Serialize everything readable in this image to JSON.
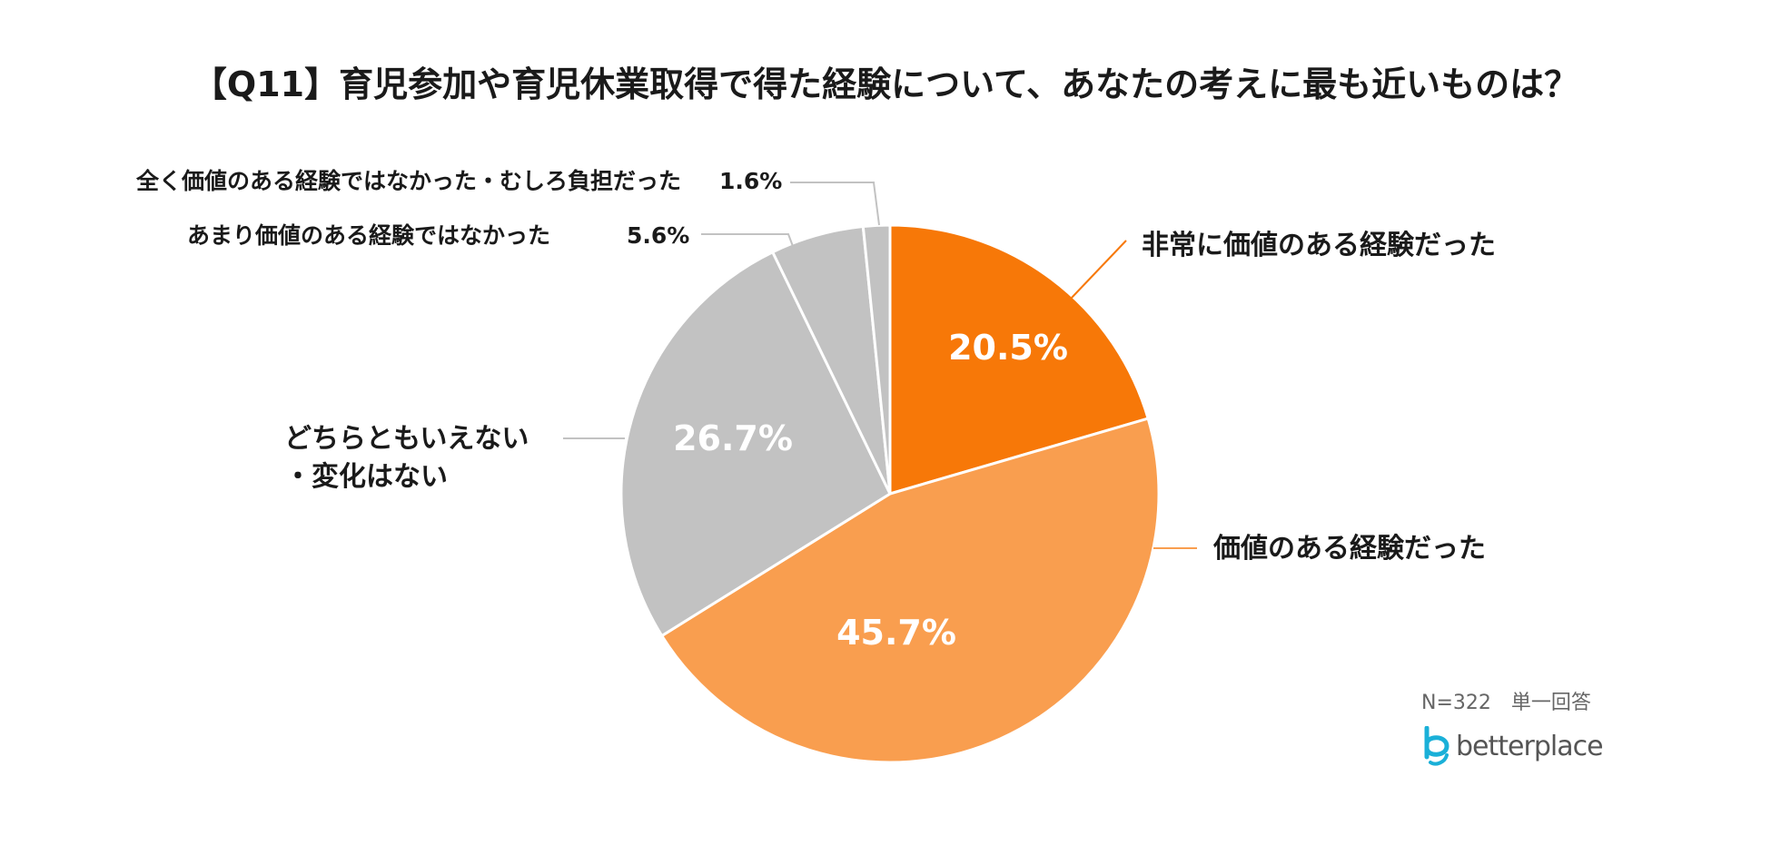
{
  "title": "【Q11】育児参加や育児休業取得で得た経験について、あなたの考えに最も近いものは？",
  "note": "N=322　単一回答",
  "brand": {
    "name": "betterplace",
    "color": "#1ab0d8",
    "icon": "betterplace-logo-icon"
  },
  "chart_data": {
    "type": "pie",
    "start": "12 o'clock",
    "direction": "clockwise",
    "categories": [
      "非常に価値のある経験だった",
      "価値のある経験だった",
      "どちらともいえない・変化はない",
      "あまり価値のある経験ではなかった",
      "全く価値のある経験ではなかった・むしろ負担だった"
    ],
    "values": [
      20.5,
      45.7,
      26.7,
      5.6,
      1.6
    ],
    "value_labels": [
      "20.5%",
      "45.7%",
      "26.7%",
      "5.6%",
      "1.6%"
    ],
    "colors": [
      "#f77808",
      "#f99e4f",
      "#c2c2c2",
      "#c2c2c2",
      "#c2c2c2"
    ]
  },
  "labels": {
    "slice0": "非常に価値のある経験だった",
    "slice1": "価値のある経験だった",
    "slice2_line1": "どちらともいえない",
    "slice2_line2": "・変化はない",
    "slice3": "あまり価値のある経験ではなかった",
    "slice4": "全く価値のある経験ではなかった・むしろ負担だった",
    "pct0": "20.5%",
    "pct1": "45.7%",
    "pct2": "26.7%",
    "pct3": "5.6%",
    "pct4": "1.6%"
  }
}
